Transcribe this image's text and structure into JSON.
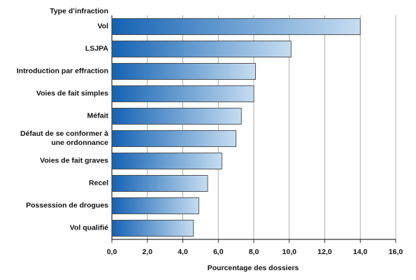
{
  "chart_data": {
    "type": "bar",
    "orientation": "horizontal",
    "y_label": "Type d’infraction",
    "x_label": "Pourcentage des dossiers",
    "categories": [
      "Vol",
      "LSJPA",
      "Introduction par effraction",
      "Voies de fait simples",
      "Méfait",
      "Défaut de se conformer à\nune ordonnance",
      "Voies de fait graves",
      "Recel",
      "Possession de drogues",
      "Vol qualifié"
    ],
    "values": [
      14.0,
      10.1,
      8.1,
      8.0,
      7.3,
      7.0,
      6.2,
      5.4,
      4.9,
      4.6
    ],
    "color": [
      "#1462b3",
      "#c6ddf1"
    ],
    "xlim": [
      0,
      16
    ],
    "xticks": [
      {
        "value": 0,
        "label": "0,0"
      },
      {
        "value": 2,
        "label": "2,0"
      },
      {
        "value": 4,
        "label": "4,0"
      },
      {
        "value": 6,
        "label": "6,0"
      },
      {
        "value": 8,
        "label": "8,0"
      },
      {
        "value": 10,
        "label": "10,0"
      },
      {
        "value": 12,
        "label": "12,0"
      },
      {
        "value": 14,
        "label": "14,0"
      },
      {
        "value": 16,
        "label": "16,0"
      }
    ],
    "grid": true
  }
}
